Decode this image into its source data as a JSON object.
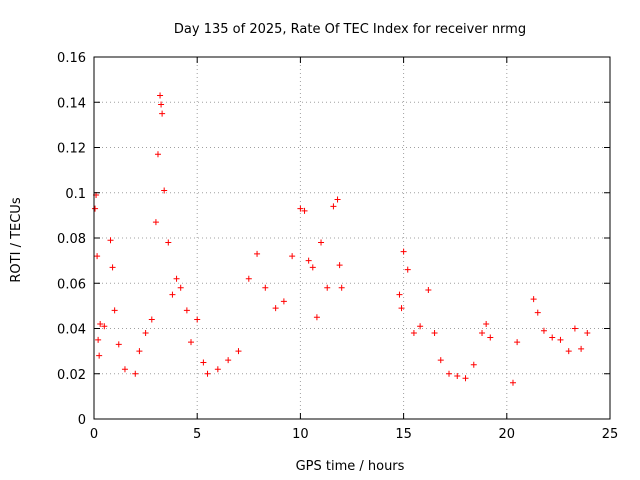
{
  "chart_data": {
    "type": "scatter",
    "title": "Day 135 of 2025, Rate Of TEC Index for receiver nrmg",
    "xlabel": "GPS time / hours",
    "ylabel": "ROTI / TECUs",
    "xlim": [
      0,
      25
    ],
    "ylim": [
      0,
      0.16
    ],
    "xticks": [
      "0",
      "5",
      "10",
      "15",
      "20",
      "25"
    ],
    "yticks": [
      "0",
      "0.02",
      "0.04",
      "0.06",
      "0.08",
      "0.1",
      "0.12",
      "0.14",
      "0.16"
    ],
    "grid": true,
    "marker": "+",
    "color": "#ff0000",
    "series": [
      {
        "x": [
          0.05,
          0.1,
          0.15,
          0.2,
          0.25,
          0.3,
          0.5,
          0.8,
          0.9,
          1.0,
          1.2,
          1.5,
          2.0,
          2.2,
          2.5,
          2.8,
          3.0,
          3.1,
          3.2,
          3.25,
          3.3,
          3.4,
          3.6,
          3.8,
          4.0,
          4.2,
          4.5,
          4.7,
          5.0,
          5.3,
          5.5,
          6.0,
          6.5,
          7.0,
          7.5,
          7.9,
          8.3,
          8.8,
          9.2,
          9.6,
          10.0,
          10.2,
          10.4,
          10.6,
          10.8,
          11.0,
          11.3,
          11.6,
          11.8,
          11.9,
          12.0,
          14.8,
          14.9,
          15.0,
          15.2,
          15.5,
          15.8,
          16.2,
          16.5,
          16.8,
          17.2,
          17.6,
          18.0,
          18.4,
          18.8,
          19.0,
          19.2,
          20.3,
          20.5,
          21.3,
          21.5,
          21.8,
          22.2,
          22.6,
          23.0,
          23.3,
          23.6,
          23.9
        ],
        "y": [
          0.093,
          0.099,
          0.072,
          0.035,
          0.028,
          0.042,
          0.041,
          0.079,
          0.067,
          0.048,
          0.033,
          0.022,
          0.02,
          0.03,
          0.038,
          0.044,
          0.087,
          0.117,
          0.143,
          0.139,
          0.135,
          0.101,
          0.078,
          0.055,
          0.062,
          0.058,
          0.048,
          0.034,
          0.044,
          0.025,
          0.02,
          0.022,
          0.026,
          0.03,
          0.062,
          0.073,
          0.058,
          0.049,
          0.052,
          0.072,
          0.093,
          0.092,
          0.07,
          0.067,
          0.045,
          0.078,
          0.058,
          0.094,
          0.097,
          0.068,
          0.058,
          0.055,
          0.049,
          0.074,
          0.066,
          0.038,
          0.041,
          0.057,
          0.038,
          0.026,
          0.02,
          0.019,
          0.018,
          0.024,
          0.038,
          0.042,
          0.036,
          0.016,
          0.034,
          0.053,
          0.047,
          0.039,
          0.036,
          0.035,
          0.03,
          0.04,
          0.031,
          0.038
        ]
      }
    ]
  }
}
